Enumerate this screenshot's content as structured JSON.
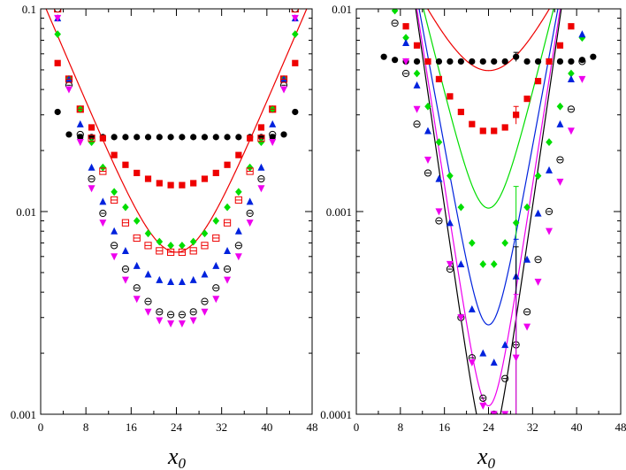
{
  "figure": {
    "description_free": true
  },
  "chart_data": [
    {
      "type": "scatter",
      "panel": "left",
      "xlabel_main": "x",
      "xlabel_sub": "0",
      "ylabel": "",
      "yscale": "log",
      "xlim": [
        0,
        48
      ],
      "ylim": [
        0.001,
        0.1
      ],
      "xticks": [
        0,
        8,
        16,
        24,
        32,
        40,
        48
      ],
      "yticks": [
        {
          "value": 0.001,
          "label": "0.001"
        },
        {
          "value": 0.01,
          "label": "0.01"
        },
        {
          "value": 0.1,
          "label": "0.1"
        }
      ],
      "series": [
        {
          "name": "black-circle",
          "marker": "circle",
          "color": "#000000",
          "x": [
            3,
            5,
            7,
            9,
            11,
            13,
            15,
            17,
            19,
            21,
            23,
            25,
            27,
            29,
            31,
            33,
            35,
            37,
            39,
            41,
            43,
            45
          ],
          "y": [
            0.031,
            0.024,
            0.0233,
            0.0233,
            0.0233,
            0.0233,
            0.0233,
            0.0233,
            0.0233,
            0.0233,
            0.0233,
            0.0233,
            0.0233,
            0.0233,
            0.0233,
            0.0233,
            0.0233,
            0.0233,
            0.0233,
            0.0233,
            0.024,
            0.031
          ]
        },
        {
          "name": "red-square",
          "marker": "square",
          "color": "#ee0000",
          "x": [
            3,
            5,
            7,
            9,
            11,
            13,
            15,
            17,
            19,
            21,
            23,
            25,
            27,
            29,
            31,
            33,
            35,
            37,
            39,
            41,
            43,
            45
          ],
          "y": [
            0.054,
            0.045,
            0.032,
            0.026,
            0.023,
            0.019,
            0.017,
            0.0155,
            0.0145,
            0.0138,
            0.0135,
            0.0135,
            0.0138,
            0.0145,
            0.0155,
            0.017,
            0.019,
            0.023,
            0.026,
            0.032,
            0.045,
            0.054
          ]
        },
        {
          "name": "green-diamond",
          "marker": "diamond",
          "color": "#00dd00",
          "x": [
            3,
            5,
            7,
            9,
            11,
            13,
            15,
            17,
            19,
            21,
            23,
            25,
            27,
            29,
            31,
            33,
            35,
            37,
            39,
            41,
            43,
            45
          ],
          "y": [
            0.075,
            0.045,
            0.032,
            0.022,
            0.0165,
            0.0125,
            0.0105,
            0.009,
            0.0078,
            0.0071,
            0.0068,
            0.0068,
            0.0071,
            0.0078,
            0.009,
            0.0105,
            0.0125,
            0.0165,
            0.022,
            0.032,
            0.045,
            0.075
          ]
        },
        {
          "name": "blue-triangle-up",
          "marker": "triangle-up",
          "color": "#0022dd",
          "x": [
            3,
            5,
            7,
            9,
            11,
            13,
            15,
            17,
            19,
            21,
            23,
            25,
            27,
            29,
            31,
            33,
            35,
            37,
            39,
            41,
            43,
            45
          ],
          "y": [
            0.09,
            0.045,
            0.027,
            0.0165,
            0.0112,
            0.008,
            0.0064,
            0.0054,
            0.0049,
            0.0046,
            0.0045,
            0.0045,
            0.0046,
            0.0049,
            0.0054,
            0.0064,
            0.008,
            0.0112,
            0.0165,
            0.027,
            0.045,
            0.09
          ]
        },
        {
          "name": "black-open-circle",
          "marker": "open-circle",
          "color": "#000000",
          "x": [
            3,
            5,
            7,
            9,
            11,
            13,
            15,
            17,
            19,
            21,
            23,
            25,
            27,
            29,
            31,
            33,
            35,
            37,
            39,
            41,
            43,
            45
          ],
          "y": [
            0.1,
            0.042,
            0.024,
            0.0145,
            0.0098,
            0.0068,
            0.0052,
            0.0042,
            0.0036,
            0.0032,
            0.0031,
            0.0031,
            0.0032,
            0.0036,
            0.0042,
            0.0052,
            0.0068,
            0.0098,
            0.0145,
            0.024,
            0.042,
            0.1
          ]
        },
        {
          "name": "magenta-triangle-down",
          "marker": "triangle-down",
          "color": "#ee00ee",
          "x": [
            3,
            5,
            7,
            9,
            11,
            13,
            15,
            17,
            19,
            21,
            23,
            25,
            27,
            29,
            31,
            33,
            35,
            37,
            39,
            41,
            43,
            45
          ],
          "y": [
            0.09,
            0.04,
            0.022,
            0.013,
            0.0088,
            0.006,
            0.0046,
            0.0037,
            0.0032,
            0.0029,
            0.0028,
            0.0028,
            0.0029,
            0.0032,
            0.0037,
            0.0046,
            0.006,
            0.0088,
            0.013,
            0.022,
            0.04,
            0.09
          ]
        },
        {
          "name": "red-open-square",
          "marker": "open-square",
          "color": "#ee0000",
          "x": [
            3,
            5,
            7,
            9,
            11,
            13,
            15,
            17,
            19,
            21,
            23,
            25,
            27,
            29,
            31,
            33,
            35,
            37,
            39,
            41,
            43,
            45
          ],
          "y": [
            0.1,
            0.045,
            0.032,
            0.023,
            0.0158,
            0.0114,
            0.0088,
            0.0074,
            0.0068,
            0.0064,
            0.0063,
            0.0063,
            0.0064,
            0.0068,
            0.0074,
            0.0088,
            0.0114,
            0.0158,
            0.023,
            0.032,
            0.045,
            0.1
          ]
        }
      ],
      "fits": [
        {
          "name": "red-fit",
          "color": "#ee0000",
          "A": 0.00315,
          "M": 0.15,
          "N": 48
        }
      ]
    },
    {
      "type": "scatter",
      "panel": "right",
      "xlabel_main": "x",
      "xlabel_sub": "0",
      "ylabel": "",
      "yscale": "log",
      "xlim": [
        0,
        48
      ],
      "ylim": [
        0.0001,
        0.01
      ],
      "xticks": [
        0,
        8,
        16,
        24,
        32,
        40,
        48
      ],
      "yticks": [
        {
          "value": 0.0001,
          "label": "0.0001"
        },
        {
          "value": 0.001,
          "label": "0.001"
        },
        {
          "value": 0.01,
          "label": "0.01"
        }
      ],
      "series": [
        {
          "name": "black-circle",
          "marker": "circle",
          "color": "#000000",
          "x": [
            5,
            7,
            9,
            11,
            13,
            15,
            17,
            19,
            21,
            23,
            25,
            27,
            29,
            31,
            33,
            35,
            37,
            39,
            41,
            43
          ],
          "y": [
            0.0058,
            0.0056,
            0.0055,
            0.0055,
            0.0055,
            0.0055,
            0.0055,
            0.0055,
            0.0055,
            0.0055,
            0.0055,
            0.0055,
            0.0058,
            0.0055,
            0.0055,
            0.0055,
            0.0055,
            0.0055,
            0.0056,
            0.0058
          ],
          "errors": [
            0,
            0,
            0,
            0,
            0,
            0,
            0,
            0,
            0,
            0,
            0,
            0,
            0.0003,
            0,
            0,
            0,
            0,
            0,
            0,
            0
          ]
        },
        {
          "name": "red-square",
          "marker": "square",
          "color": "#ee0000",
          "x": [
            9,
            11,
            13,
            15,
            17,
            19,
            21,
            23,
            25,
            27,
            29,
            31,
            33,
            35,
            37,
            39
          ],
          "y": [
            0.0082,
            0.0066,
            0.0055,
            0.0045,
            0.0037,
            0.0031,
            0.0027,
            0.0025,
            0.0025,
            0.0026,
            0.003,
            0.0036,
            0.0044,
            0.0055,
            0.0066,
            0.0082
          ],
          "errors": [
            0,
            0,
            0,
            0,
            0,
            0,
            0,
            0,
            0,
            0,
            0.0003,
            0,
            0,
            0,
            0,
            0
          ]
        },
        {
          "name": "green-diamond",
          "marker": "diamond",
          "color": "#00dd00",
          "x": [
            7,
            9,
            11,
            13,
            15,
            17,
            19,
            21,
            23,
            25,
            27,
            29,
            31,
            33,
            35,
            37,
            39,
            41
          ],
          "y": [
            0.0098,
            0.0072,
            0.0048,
            0.0033,
            0.0022,
            0.0015,
            0.00105,
            0.0007,
            0.00055,
            0.00055,
            0.0007,
            0.00088,
            0.00105,
            0.0015,
            0.0022,
            0.0033,
            0.0048,
            0.0072
          ],
          "errors": [
            0,
            0,
            0,
            0,
            0,
            0,
            0,
            0,
            0,
            0,
            0,
            0.00045,
            0,
            0,
            0,
            0,
            0,
            0
          ]
        },
        {
          "name": "blue-triangle-up",
          "marker": "triangle-up",
          "color": "#0022dd",
          "x": [
            9,
            11,
            13,
            15,
            17,
            19,
            21,
            23,
            25,
            27,
            29,
            31,
            33,
            35,
            37,
            39,
            41
          ],
          "y": [
            0.0068,
            0.0042,
            0.0025,
            0.00145,
            0.00088,
            0.00055,
            0.00033,
            0.0002,
            0.00018,
            0.00022,
            0.00048,
            0.00058,
            0.00098,
            0.0016,
            0.0027,
            0.0045,
            0.0075
          ],
          "errors": [
            0,
            0,
            0,
            0,
            0,
            0,
            0,
            0,
            0,
            0,
            0.00025,
            0,
            0,
            0,
            0,
            0,
            0
          ]
        },
        {
          "name": "black-open-circle",
          "marker": "open-circle",
          "color": "#000000",
          "x": [
            7,
            9,
            11,
            13,
            15,
            17,
            19,
            21,
            23,
            25,
            27,
            29,
            31,
            33,
            35,
            37,
            39,
            41
          ],
          "y": [
            0.0085,
            0.0048,
            0.0027,
            0.00155,
            0.0009,
            0.00052,
            0.0003,
            0.00019,
            0.00012,
            0.0001,
            0.00015,
            0.00022,
            0.00032,
            0.00058,
            0.001,
            0.0018,
            0.0032,
            0.0055
          ],
          "errors": [
            0,
            0,
            0,
            0,
            0,
            0,
            0,
            0,
            0,
            0,
            0,
            0.00045,
            0,
            0,
            0,
            0,
            0,
            0
          ]
        },
        {
          "name": "magenta-triangle-down",
          "marker": "triangle-down",
          "color": "#ee00ee",
          "x": [
            9,
            11,
            13,
            15,
            17,
            19,
            21,
            23,
            25,
            27,
            29,
            31,
            33,
            35,
            37,
            39,
            41
          ],
          "y": [
            0.0055,
            0.0032,
            0.0018,
            0.001,
            0.00055,
            0.0003,
            0.00018,
            0.00011,
            0.0001,
            0.0001,
            0.00019,
            0.00027,
            0.00045,
            0.0008,
            0.0014,
            0.0025,
            0.0045
          ],
          "errors": [
            0,
            0,
            0,
            0,
            0,
            0,
            0,
            0,
            0,
            0,
            0.0002,
            0,
            0,
            0,
            0,
            0,
            0
          ]
        }
      ],
      "fits": [
        {
          "name": "black-flat-fit",
          "color": "#000000",
          "A": 0.0051,
          "M": 0.008,
          "N": 48
        },
        {
          "name": "red-fit",
          "color": "#ee0000",
          "A": 0.00248,
          "M": 0.12,
          "N": 48
        },
        {
          "name": "green-fit",
          "color": "#00dd00",
          "A": 0.00052,
          "M": 0.25,
          "N": 48
        },
        {
          "name": "blue-fit",
          "color": "#0022dd",
          "A": 0.000138,
          "M": 0.34,
          "N": 48
        },
        {
          "name": "magenta-fit",
          "color": "#ee00ee",
          "A": 5.5e-05,
          "M": 0.4,
          "N": 48
        },
        {
          "name": "black-fit",
          "color": "#000000",
          "A": 3.4e-05,
          "M": 0.43,
          "N": 48
        }
      ]
    }
  ]
}
